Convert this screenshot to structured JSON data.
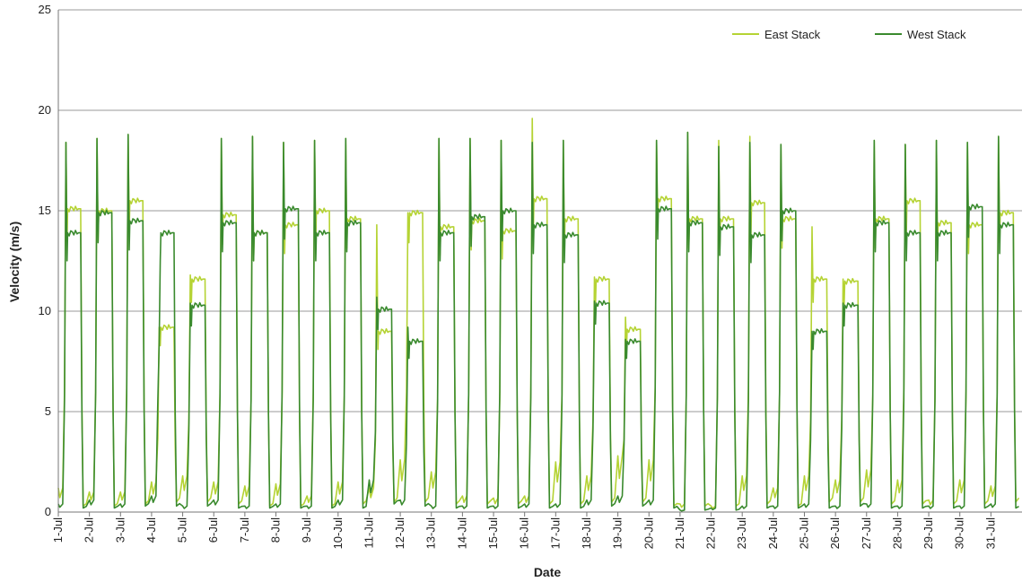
{
  "chart_data": {
    "type": "line",
    "title": "",
    "xlabel": "Date",
    "ylabel": "Velocity (m/s)",
    "ylim": [
      0,
      25
    ],
    "yticks": [
      "0",
      "5",
      "10",
      "15",
      "20",
      "25"
    ],
    "xlim": [
      1,
      32
    ],
    "categories": [
      "1-Jul",
      "2-Jul",
      "3-Jul",
      "4-Jul",
      "5-Jul",
      "6-Jul",
      "7-Jul",
      "8-Jul",
      "9-Jul",
      "10-Jul",
      "11-Jul",
      "12-Jul",
      "13-Jul",
      "14-Jul",
      "15-Jul",
      "16-Jul",
      "17-Jul",
      "18-Jul",
      "19-Jul",
      "20-Jul",
      "21-Jul",
      "22-Jul",
      "23-Jul",
      "24-Jul",
      "25-Jul",
      "26-Jul",
      "27-Jul",
      "28-Jul",
      "29-Jul",
      "30-Jul",
      "31-Jul"
    ],
    "grid": "horizontal",
    "legend_position": "top-right",
    "series": [
      {
        "name": "East Stack",
        "color": "#b5d334",
        "daily": [
          {
            "date": "1-Jul",
            "start": 1.2,
            "spike": 18.4,
            "plateau": 15.1,
            "end": 0.3
          },
          {
            "date": "2-Jul",
            "start": 1.0,
            "spike": 18.6,
            "plateau": 15.0,
            "end": 0.3
          },
          {
            "date": "3-Jul",
            "start": 1.0,
            "spike": 18.8,
            "plateau": 15.5,
            "end": 0.4
          },
          {
            "date": "4-Jul",
            "start": 1.5,
            "spike": 9.2,
            "plateau": 9.2,
            "end": 0.5
          },
          {
            "date": "5-Jul",
            "start": 1.8,
            "spike": 11.8,
            "plateau": 11.6,
            "end": 0.5
          },
          {
            "date": "6-Jul",
            "start": 1.5,
            "spike": 18.6,
            "plateau": 14.8,
            "end": 0.4
          },
          {
            "date": "7-Jul",
            "start": 1.3,
            "spike": 18.7,
            "plateau": 13.9,
            "end": 0.3
          },
          {
            "date": "8-Jul",
            "start": 1.4,
            "spike": 18.4,
            "plateau": 14.3,
            "end": 0.3
          },
          {
            "date": "9-Jul",
            "start": 0.8,
            "spike": 18.5,
            "plateau": 15.0,
            "end": 0.3
          },
          {
            "date": "10-Jul",
            "start": 1.5,
            "spike": 18.6,
            "plateau": 14.6,
            "end": 0.4
          },
          {
            "date": "11-Jul",
            "start": 1.2,
            "spike": 14.3,
            "plateau": 9.0,
            "end": 0.5
          },
          {
            "date": "12-Jul",
            "start": 2.6,
            "spike": 14.9,
            "plateau": 14.9,
            "end": 0.5
          },
          {
            "date": "13-Jul",
            "start": 2.0,
            "spike": 18.6,
            "plateau": 14.2,
            "end": 0.4
          },
          {
            "date": "14-Jul",
            "start": 0.8,
            "spike": 18.6,
            "plateau": 14.5,
            "end": 0.4
          },
          {
            "date": "15-Jul",
            "start": 0.7,
            "spike": 18.5,
            "plateau": 14.0,
            "end": 0.4
          },
          {
            "date": "16-Jul",
            "start": 0.8,
            "spike": 19.6,
            "plateau": 15.6,
            "end": 0.4
          },
          {
            "date": "17-Jul",
            "start": 2.5,
            "spike": 18.5,
            "plateau": 14.6,
            "end": 0.4
          },
          {
            "date": "18-Jul",
            "start": 1.8,
            "spike": 11.7,
            "plateau": 11.6,
            "end": 0.5
          },
          {
            "date": "19-Jul",
            "start": 2.8,
            "spike": 9.7,
            "plateau": 9.1,
            "end": 0.5
          },
          {
            "date": "20-Jul",
            "start": 2.6,
            "spike": 18.5,
            "plateau": 15.6,
            "end": 0.3
          },
          {
            "date": "21-Jul",
            "start": 0.4,
            "spike": 18.9,
            "plateau": 14.6,
            "end": 0.3
          },
          {
            "date": "22-Jul",
            "start": 0.3,
            "spike": 18.5,
            "plateau": 14.6,
            "end": 0.3
          },
          {
            "date": "23-Jul",
            "start": 1.8,
            "spike": 18.7,
            "plateau": 15.4,
            "end": 0.4
          },
          {
            "date": "24-Jul",
            "start": 1.2,
            "spike": 18.3,
            "plateau": 14.6,
            "end": 0.3
          },
          {
            "date": "25-Jul",
            "start": 1.8,
            "spike": 14.2,
            "plateau": 11.6,
            "end": 0.5
          },
          {
            "date": "26-Jul",
            "start": 1.6,
            "spike": 11.6,
            "plateau": 11.5,
            "end": 0.5
          },
          {
            "date": "27-Jul",
            "start": 2.1,
            "spike": 18.5,
            "plateau": 14.6,
            "end": 0.4
          },
          {
            "date": "28-Jul",
            "start": 1.6,
            "spike": 18.3,
            "plateau": 15.5,
            "end": 0.4
          },
          {
            "date": "29-Jul",
            "start": 0.6,
            "spike": 18.5,
            "plateau": 14.4,
            "end": 0.4
          },
          {
            "date": "30-Jul",
            "start": 1.6,
            "spike": 18.4,
            "plateau": 14.3,
            "end": 0.4
          },
          {
            "date": "31-Jul",
            "start": 1.3,
            "spike": 18.7,
            "plateau": 14.9,
            "end": 0.5
          }
        ]
      },
      {
        "name": "West Stack",
        "color": "#3a8a2e",
        "daily": [
          {
            "date": "1-Jul",
            "start": 0.4,
            "spike": 18.4,
            "plateau": 13.9,
            "end": 0.2
          },
          {
            "date": "2-Jul",
            "start": 0.6,
            "spike": 18.6,
            "plateau": 14.9,
            "end": 0.2
          },
          {
            "date": "3-Jul",
            "start": 0.4,
            "spike": 18.8,
            "plateau": 14.5,
            "end": 0.3
          },
          {
            "date": "4-Jul",
            "start": 0.8,
            "spike": 8.4,
            "plateau": 13.9,
            "end": 0.3
          },
          {
            "date": "5-Jul",
            "start": 0.3,
            "spike": 10.4,
            "plateau": 10.3,
            "end": 0.3
          },
          {
            "date": "6-Jul",
            "start": 0.6,
            "spike": 18.6,
            "plateau": 14.4,
            "end": 0.2
          },
          {
            "date": "7-Jul",
            "start": 0.3,
            "spike": 18.7,
            "plateau": 13.9,
            "end": 0.2
          },
          {
            "date": "8-Jul",
            "start": 0.4,
            "spike": 18.4,
            "plateau": 15.1,
            "end": 0.2
          },
          {
            "date": "9-Jul",
            "start": 0.3,
            "spike": 18.5,
            "plateau": 13.9,
            "end": 0.2
          },
          {
            "date": "10-Jul",
            "start": 0.6,
            "spike": 18.6,
            "plateau": 14.4,
            "end": 0.2
          },
          {
            "date": "11-Jul",
            "start": 1.6,
            "spike": 10.7,
            "plateau": 10.1,
            "end": 0.4
          },
          {
            "date": "12-Jul",
            "start": 0.6,
            "spike": 9.2,
            "plateau": 8.5,
            "end": 0.3
          },
          {
            "date": "13-Jul",
            "start": 0.3,
            "spike": 18.6,
            "plateau": 13.9,
            "end": 0.2
          },
          {
            "date": "14-Jul",
            "start": 0.3,
            "spike": 18.6,
            "plateau": 14.7,
            "end": 0.2
          },
          {
            "date": "15-Jul",
            "start": 0.3,
            "spike": 18.5,
            "plateau": 15.0,
            "end": 0.2
          },
          {
            "date": "16-Jul",
            "start": 0.4,
            "spike": 18.4,
            "plateau": 14.3,
            "end": 0.2
          },
          {
            "date": "17-Jul",
            "start": 0.4,
            "spike": 18.5,
            "plateau": 13.8,
            "end": 0.2
          },
          {
            "date": "18-Jul",
            "start": 0.6,
            "spike": 10.5,
            "plateau": 10.4,
            "end": 0.3
          },
          {
            "date": "19-Jul",
            "start": 0.8,
            "spike": 8.6,
            "plateau": 8.5,
            "end": 0.3
          },
          {
            "date": "20-Jul",
            "start": 0.6,
            "spike": 18.5,
            "plateau": 15.1,
            "end": 0.2
          },
          {
            "date": "21-Jul",
            "start": 0.1,
            "spike": 18.9,
            "plateau": 14.4,
            "end": 0.1
          },
          {
            "date": "22-Jul",
            "start": 0.2,
            "spike": 18.2,
            "plateau": 14.2,
            "end": 0.1
          },
          {
            "date": "23-Jul",
            "start": 0.3,
            "spike": 18.4,
            "plateau": 13.8,
            "end": 0.2
          },
          {
            "date": "24-Jul",
            "start": 0.3,
            "spike": 18.3,
            "plateau": 15.0,
            "end": 0.2
          },
          {
            "date": "25-Jul",
            "start": 0.4,
            "spike": 9.0,
            "plateau": 9.0,
            "end": 0.2
          },
          {
            "date": "26-Jul",
            "start": 0.3,
            "spike": 10.4,
            "plateau": 10.3,
            "end": 0.3
          },
          {
            "date": "27-Jul",
            "start": 0.4,
            "spike": 18.5,
            "plateau": 14.4,
            "end": 0.2
          },
          {
            "date": "28-Jul",
            "start": 0.3,
            "spike": 18.3,
            "plateau": 13.9,
            "end": 0.2
          },
          {
            "date": "29-Jul",
            "start": 0.3,
            "spike": 18.5,
            "plateau": 13.9,
            "end": 0.2
          },
          {
            "date": "30-Jul",
            "start": 0.3,
            "spike": 18.4,
            "plateau": 15.2,
            "end": 0.2
          },
          {
            "date": "31-Jul",
            "start": 0.4,
            "spike": 18.7,
            "plateau": 14.3,
            "end": 0.2
          }
        ]
      }
    ]
  }
}
